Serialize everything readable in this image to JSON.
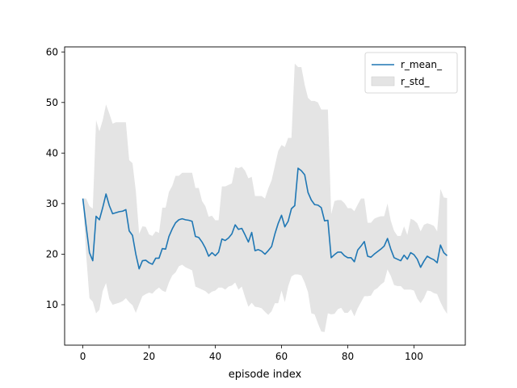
{
  "chart_data": {
    "type": "line",
    "title": "",
    "xlabel": "episode index",
    "ylabel": "",
    "xlim": [
      -5.5,
      115.5
    ],
    "ylim": [
      2,
      61
    ],
    "xticks": [
      0,
      20,
      40,
      60,
      80,
      100
    ],
    "yticks": [
      10,
      20,
      30,
      40,
      50,
      60
    ],
    "grid": false,
    "legend_position": "top-right",
    "series": [
      {
        "name": "r_mean_",
        "kind": "line",
        "color": "#1f77b4",
        "x": [
          0,
          1,
          2,
          3,
          4,
          5,
          6,
          7,
          8,
          9,
          10,
          11,
          12,
          13,
          14,
          15,
          16,
          17,
          18,
          19,
          20,
          21,
          22,
          23,
          24,
          25,
          26,
          27,
          28,
          29,
          30,
          31,
          32,
          33,
          34,
          35,
          36,
          37,
          38,
          39,
          40,
          41,
          42,
          43,
          44,
          45,
          46,
          47,
          48,
          49,
          50,
          51,
          52,
          53,
          54,
          55,
          56,
          57,
          58,
          59,
          60,
          61,
          62,
          63,
          64,
          65,
          66,
          67,
          68,
          69,
          70,
          71,
          72,
          73,
          74,
          75,
          76,
          77,
          78,
          79,
          80,
          81,
          82,
          83,
          84,
          85,
          86,
          87,
          88,
          89,
          90,
          91,
          92,
          93,
          94,
          95,
          96,
          97,
          98,
          99,
          100,
          101,
          102,
          103,
          104,
          105,
          106,
          107,
          108,
          109,
          110
        ],
        "values": [
          31.0,
          25.5,
          20.3,
          18.7,
          27.5,
          26.8,
          29.2,
          31.9,
          29.6,
          28.0,
          28.2,
          28.4,
          28.5,
          28.8,
          24.6,
          23.7,
          20.0,
          17.1,
          18.7,
          18.8,
          18.3,
          18.0,
          19.2,
          19.2,
          21.1,
          21.0,
          23.5,
          25.0,
          26.2,
          26.8,
          27.0,
          26.8,
          26.7,
          26.5,
          23.5,
          23.3,
          22.4,
          21.2,
          19.6,
          20.3,
          19.7,
          20.4,
          23.0,
          22.7,
          23.2,
          24.0,
          25.8,
          24.9,
          25.1,
          23.8,
          22.4,
          24.3,
          20.7,
          20.9,
          20.6,
          20.0,
          20.7,
          21.5,
          24.0,
          26.1,
          27.7,
          25.4,
          26.5,
          29.0,
          29.6,
          37.0,
          36.5,
          35.7,
          32.2,
          30.7,
          29.8,
          29.7,
          29.2,
          26.6,
          26.7,
          19.3,
          19.9,
          20.4,
          20.4,
          19.7,
          19.3,
          19.3,
          18.5,
          20.8,
          21.6,
          22.5,
          19.6,
          19.4,
          20.0,
          20.5,
          21.0,
          21.6,
          23.1,
          21.0,
          19.3,
          19.0,
          18.7,
          19.8,
          19.0,
          20.3,
          19.9,
          19.0,
          17.4,
          18.6,
          19.6,
          19.2,
          18.9,
          18.3,
          21.8,
          20.3,
          19.7
        ]
      },
      {
        "name": "r_std_",
        "kind": "band",
        "color": "#e4e4e4",
        "x": [
          0,
          1,
          2,
          3,
          4,
          5,
          6,
          7,
          8,
          9,
          10,
          11,
          12,
          13,
          14,
          15,
          16,
          17,
          18,
          19,
          20,
          21,
          22,
          23,
          24,
          25,
          26,
          27,
          28,
          29,
          30,
          31,
          32,
          33,
          34,
          35,
          36,
          37,
          38,
          39,
          40,
          41,
          42,
          43,
          44,
          45,
          46,
          47,
          48,
          49,
          50,
          51,
          52,
          53,
          54,
          55,
          56,
          57,
          58,
          59,
          60,
          61,
          62,
          63,
          64,
          65,
          66,
          67,
          68,
          69,
          70,
          71,
          72,
          73,
          74,
          75,
          76,
          77,
          78,
          79,
          80,
          81,
          82,
          83,
          84,
          85,
          86,
          87,
          88,
          89,
          90,
          91,
          92,
          93,
          94,
          95,
          96,
          97,
          98,
          99,
          100,
          101,
          102,
          103,
          104,
          105,
          106,
          107,
          108,
          109,
          110
        ],
        "upper": [
          31.0,
          31.0,
          29.5,
          29.0,
          46.5,
          44.3,
          46.5,
          49.6,
          47.8,
          45.8,
          46.1,
          46.1,
          46.1,
          46.1,
          38.6,
          38.0,
          32.5,
          24.0,
          25.5,
          25.4,
          23.9,
          23.6,
          24.5,
          24.2,
          29.2,
          29.2,
          32.3,
          33.5,
          35.5,
          35.5,
          36.1,
          36.1,
          36.1,
          36.1,
          33.1,
          33.1,
          30.5,
          29.5,
          27.4,
          27.6,
          26.7,
          26.7,
          33.4,
          33.4,
          33.7,
          34.0,
          37.2,
          37.0,
          37.3,
          36.5,
          35.0,
          35.3,
          31.5,
          31.5,
          31.5,
          31.0,
          33.0,
          34.6,
          37.5,
          40.4,
          41.6,
          41.2,
          43.0,
          43.0,
          57.7,
          57.0,
          57.0,
          53.5,
          50.9,
          50.3,
          50.3,
          50.0,
          48.6,
          48.6,
          48.6,
          27.9,
          30.5,
          30.7,
          30.7,
          30.1,
          29.1,
          29.1,
          28.5,
          29.8,
          31.0,
          31.0,
          26.2,
          26.2,
          27.0,
          27.3,
          27.5,
          27.5,
          30.0,
          26.6,
          24.6,
          23.6,
          23.6,
          25.5,
          23.8,
          27.0,
          26.7,
          26.1,
          24.5,
          25.8,
          26.1,
          25.9,
          25.6,
          24.5,
          32.9,
          31.2,
          31.1
        ],
        "lower": [
          31.0,
          19.9,
          11.3,
          10.6,
          8.3,
          9.0,
          12.7,
          14.3,
          11.1,
          10.0,
          10.2,
          10.4,
          10.7,
          11.3,
          10.5,
          9.9,
          8.4,
          10.1,
          11.7,
          12.1,
          12.4,
          12.2,
          12.9,
          13.4,
          12.8,
          12.5,
          14.4,
          15.8,
          16.4,
          17.6,
          17.9,
          17.4,
          17.1,
          16.8,
          13.6,
          13.3,
          13.0,
          12.7,
          12.1,
          12.6,
          12.8,
          13.4,
          13.4,
          13.0,
          13.6,
          13.8,
          14.4,
          13.0,
          13.6,
          11.5,
          9.6,
          10.4,
          9.6,
          9.5,
          9.3,
          8.6,
          8.0,
          8.7,
          10.3,
          10.3,
          12.8,
          10.5,
          13.6,
          15.6,
          16.0,
          16.0,
          15.8,
          14.4,
          12.5,
          8.3,
          8.1,
          6.3,
          4.7,
          4.6,
          8.3,
          8.1,
          8.2,
          9.1,
          9.4,
          8.4,
          8.4,
          9.1,
          7.7,
          9.3,
          10.5,
          11.7,
          11.7,
          11.8,
          12.9,
          13.3,
          14.0,
          14.5,
          17.0,
          15.7,
          13.9,
          13.7,
          13.7,
          13.0,
          13.0,
          13.0,
          12.8,
          11.2,
          10.3,
          11.3,
          12.8,
          12.7,
          12.3,
          12.1,
          10.5,
          9.2,
          8.2
        ]
      }
    ]
  }
}
